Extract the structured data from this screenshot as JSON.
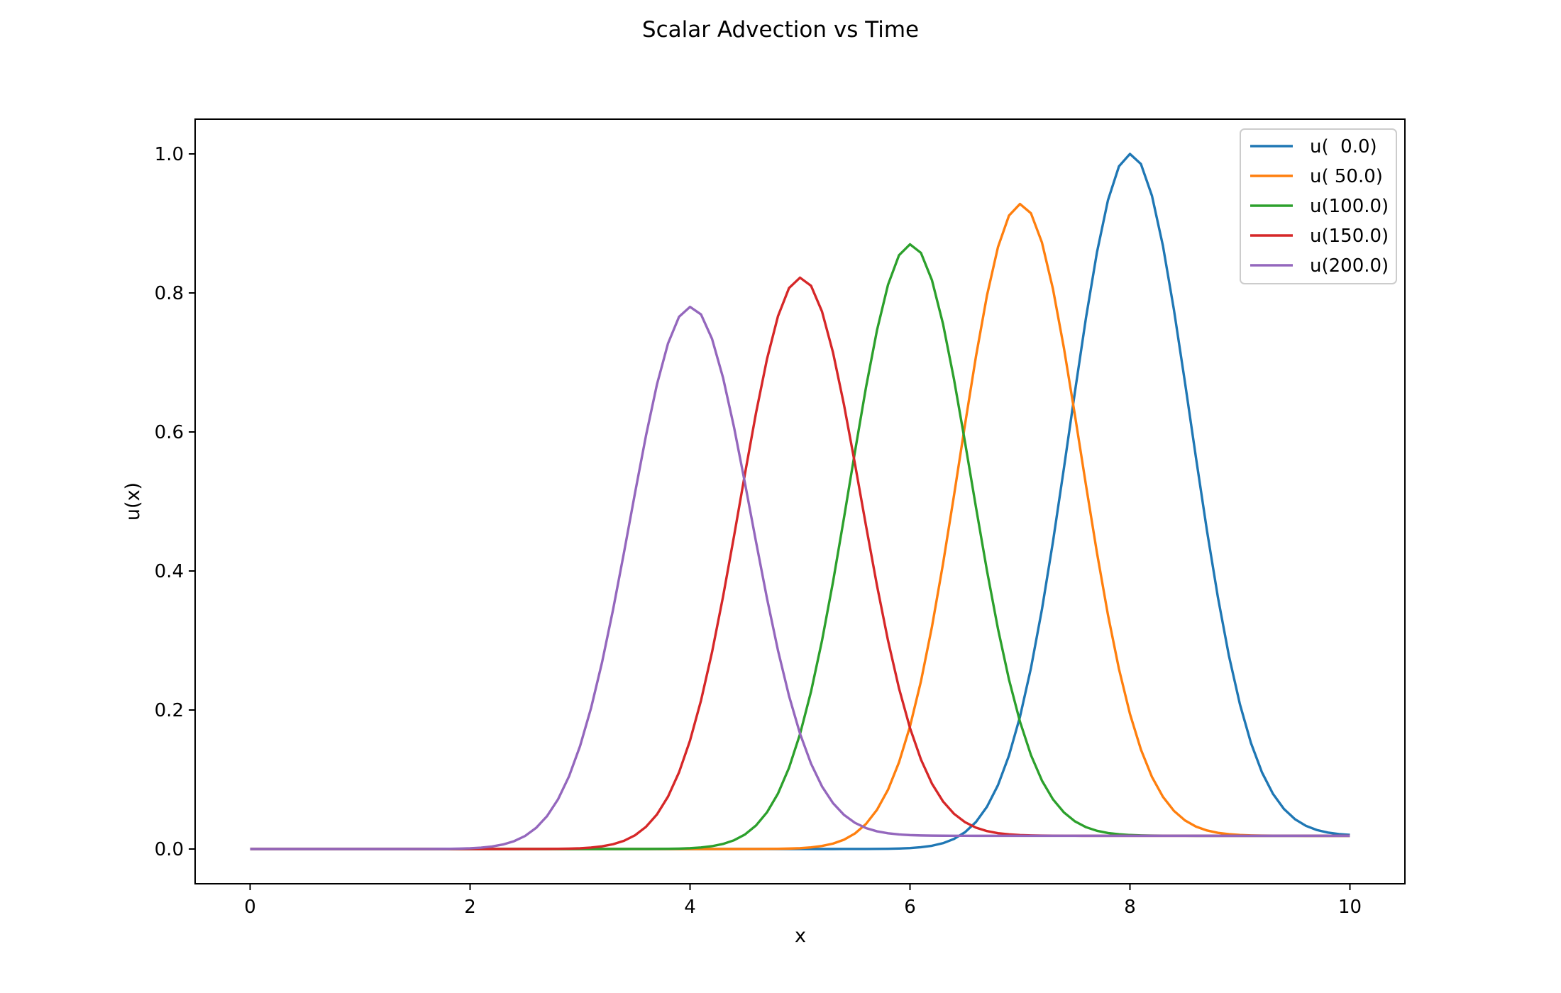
{
  "chart_data": {
    "type": "line",
    "title": "Scalar Advection vs Time",
    "xlabel": "x",
    "ylabel": "u(x)",
    "xlim": [
      -0.5,
      10.5
    ],
    "ylim": [
      -0.05,
      1.05
    ],
    "xticks": [
      0,
      2,
      4,
      6,
      8,
      10
    ],
    "xtick_labels": [
      "0",
      "2",
      "4",
      "6",
      "8",
      "10"
    ],
    "yticks": [
      0.0,
      0.2,
      0.4,
      0.6,
      0.8,
      1.0
    ],
    "ytick_labels": [
      "0.0",
      "0.2",
      "0.4",
      "0.6",
      "0.8",
      "1.0"
    ],
    "grid": false,
    "legend_position": "top-right",
    "x": {
      "start": 0,
      "stop": 10,
      "count": 101
    },
    "series": [
      {
        "name": "u(  0.0)",
        "color": "#1f77b4",
        "center": 8.0,
        "peak": 1.0,
        "baseline_right": 0.019
      },
      {
        "name": "u( 50.0)",
        "color": "#ff7f0e",
        "center": 7.0,
        "peak": 0.928,
        "baseline_right": 0.019
      },
      {
        "name": "u(100.0)",
        "color": "#2ca02c",
        "center": 6.0,
        "peak": 0.87,
        "baseline_right": 0.019
      },
      {
        "name": "u(150.0)",
        "color": "#d62728",
        "center": 5.0,
        "peak": 0.822,
        "baseline_right": 0.019
      },
      {
        "name": "u(200.0)",
        "color": "#9467bd",
        "center": 4.0,
        "peak": 0.78,
        "baseline_right": 0.019
      }
    ]
  }
}
